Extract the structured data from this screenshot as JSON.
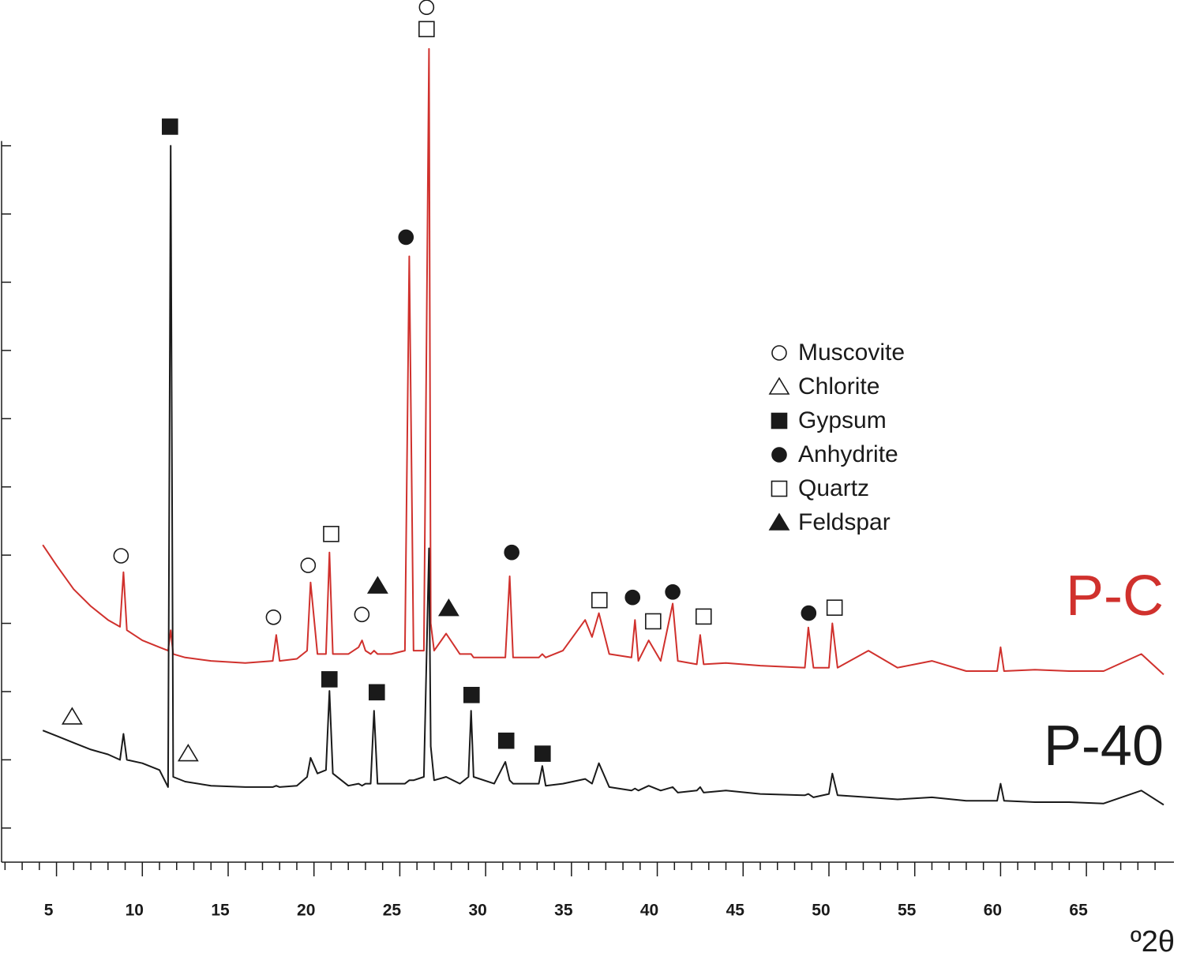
{
  "chart_data": {
    "type": "line",
    "xlabel": "º2θ",
    "xlim": [
      1.8,
      70.1
    ],
    "ylim": [
      0.5,
      12.5
    ],
    "xticks": [
      5,
      10,
      15,
      20,
      25,
      30,
      35,
      40,
      45,
      50,
      55,
      60,
      65
    ],
    "xminorticks": [
      2,
      3,
      4,
      6,
      7,
      8,
      9,
      11,
      12,
      13,
      14,
      16,
      17,
      18,
      19,
      21,
      22,
      23,
      24,
      26,
      27,
      28,
      29,
      31,
      32,
      33,
      34,
      36,
      37,
      38,
      39,
      41,
      42,
      43,
      44,
      46,
      47,
      48,
      49,
      51,
      52,
      53,
      54,
      56,
      57,
      58,
      59,
      61,
      62,
      63,
      64,
      66,
      67,
      68,
      69
    ],
    "yticks": [
      1,
      2,
      3,
      4,
      5,
      6,
      7,
      8,
      9,
      10,
      11
    ],
    "x": [
      4.2,
      5,
      6,
      7,
      8,
      8.7,
      8.9,
      9.1,
      10,
      11,
      11.5,
      11.65,
      11.8,
      12.5,
      14,
      16,
      17.6,
      17.8,
      18,
      19,
      19.6,
      19.8,
      20.2,
      20.7,
      20.9,
      21.1,
      22,
      22.6,
      22.8,
      23,
      23.3,
      23.5,
      23.7,
      24.5,
      25.3,
      25.55,
      25.8,
      26.4,
      26.7,
      26.8,
      27.0,
      27.7,
      28.5,
      29.0,
      29.15,
      29.3,
      30.5,
      31.15,
      31.4,
      31.6,
      33.1,
      33.3,
      33.5,
      34.5,
      35.8,
      36.2,
      36.6,
      37.2,
      38.5,
      38.7,
      38.9,
      39.5,
      40.2,
      40.9,
      41.2,
      42.3,
      42.5,
      42.7,
      44,
      46,
      48.6,
      48.8,
      49.1,
      50.0,
      50.2,
      50.5,
      52.3,
      54,
      56,
      58,
      59.8,
      60,
      60.2,
      62,
      64,
      66,
      68.2,
      69.5
    ],
    "series": [
      {
        "name": "P-C",
        "color": "#d0312d",
        "values": [
          5.15,
          4.85,
          4.5,
          4.25,
          4.05,
          3.95,
          4.75,
          3.9,
          3.75,
          3.65,
          3.6,
          3.9,
          3.55,
          3.5,
          3.45,
          3.42,
          3.45,
          3.83,
          3.45,
          3.48,
          3.6,
          4.6,
          3.55,
          3.55,
          5.04,
          3.55,
          3.55,
          3.65,
          3.75,
          3.6,
          3.55,
          3.6,
          3.55,
          3.55,
          3.6,
          9.38,
          3.6,
          3.6,
          12.42,
          4.0,
          3.6,
          3.85,
          3.55,
          3.55,
          3.55,
          3.5,
          3.5,
          3.5,
          4.69,
          3.5,
          3.5,
          3.55,
          3.5,
          3.6,
          4.05,
          3.8,
          4.15,
          3.55,
          3.5,
          4.05,
          3.45,
          3.75,
          3.45,
          4.29,
          3.45,
          3.4,
          3.83,
          3.4,
          3.42,
          3.38,
          3.35,
          3.94,
          3.35,
          3.35,
          4.0,
          3.35,
          3.6,
          3.35,
          3.45,
          3.3,
          3.3,
          3.65,
          3.3,
          3.32,
          3.3,
          3.3,
          3.55,
          3.25
        ]
      },
      {
        "name": "P-40",
        "color": "#1a1a1a",
        "values": [
          2.43,
          2.35,
          2.25,
          2.15,
          2.08,
          2.0,
          2.38,
          2.0,
          1.95,
          1.85,
          1.6,
          11.0,
          1.75,
          1.68,
          1.62,
          1.6,
          1.6,
          1.62,
          1.6,
          1.62,
          1.75,
          2.03,
          1.8,
          1.85,
          3.01,
          1.8,
          1.62,
          1.65,
          1.62,
          1.65,
          1.65,
          2.72,
          1.65,
          1.65,
          1.65,
          1.7,
          1.7,
          1.75,
          5.1,
          2.2,
          1.7,
          1.75,
          1.65,
          1.75,
          2.72,
          1.75,
          1.65,
          1.97,
          1.7,
          1.65,
          1.65,
          1.91,
          1.62,
          1.65,
          1.72,
          1.65,
          1.95,
          1.6,
          1.55,
          1.58,
          1.55,
          1.62,
          1.55,
          1.6,
          1.52,
          1.55,
          1.6,
          1.52,
          1.55,
          1.5,
          1.48,
          1.5,
          1.45,
          1.5,
          1.8,
          1.48,
          1.45,
          1.42,
          1.45,
          1.4,
          1.4,
          1.65,
          1.4,
          1.38,
          1.38,
          1.36,
          1.55,
          1.34
        ]
      }
    ],
    "phases": [
      {
        "name": "Muscovite",
        "symbol": "circle-open"
      },
      {
        "name": "Chlorite",
        "symbol": "triangle-open"
      },
      {
        "name": "Gypsum",
        "symbol": "square-filled"
      },
      {
        "name": "Anhydrite",
        "symbol": "circle-filled"
      },
      {
        "name": "Quartz",
        "symbol": "square-open"
      },
      {
        "name": "Feldspar",
        "symbol": "triangle-filled"
      }
    ],
    "annotations": [
      {
        "phase": 0,
        "x": 8.76,
        "y": 4.99
      },
      {
        "phase": 2,
        "x": 11.61,
        "y": 11.28
      },
      {
        "phase": 0,
        "x": 26.56,
        "y": 13.03
      },
      {
        "phase": 4,
        "x": 26.56,
        "y": 12.71
      },
      {
        "phase": 3,
        "x": 25.36,
        "y": 9.66
      },
      {
        "phase": 4,
        "x": 21.0,
        "y": 5.31
      },
      {
        "phase": 0,
        "x": 19.66,
        "y": 4.85
      },
      {
        "phase": 0,
        "x": 17.64,
        "y": 4.09
      },
      {
        "phase": 5,
        "x": 23.71,
        "y": 4.55
      },
      {
        "phase": 0,
        "x": 22.79,
        "y": 4.13
      },
      {
        "phase": 5,
        "x": 27.85,
        "y": 4.22
      },
      {
        "phase": 3,
        "x": 31.52,
        "y": 5.04
      },
      {
        "phase": 4,
        "x": 36.63,
        "y": 4.34
      },
      {
        "phase": 3,
        "x": 38.56,
        "y": 4.38
      },
      {
        "phase": 4,
        "x": 39.76,
        "y": 4.03
      },
      {
        "phase": 3,
        "x": 40.9,
        "y": 4.46
      },
      {
        "phase": 4,
        "x": 42.7,
        "y": 4.1
      },
      {
        "phase": 3,
        "x": 48.82,
        "y": 4.15
      },
      {
        "phase": 4,
        "x": 50.33,
        "y": 4.23
      },
      {
        "phase": 2,
        "x": 20.9,
        "y": 3.18
      },
      {
        "phase": 2,
        "x": 23.66,
        "y": 2.99
      },
      {
        "phase": 2,
        "x": 29.18,
        "y": 2.95
      },
      {
        "phase": 2,
        "x": 31.2,
        "y": 2.28
      },
      {
        "phase": 2,
        "x": 33.32,
        "y": 2.09
      },
      {
        "phase": 1,
        "x": 5.91,
        "y": 2.63
      },
      {
        "phase": 1,
        "x": 12.67,
        "y": 2.09
      }
    ]
  }
}
